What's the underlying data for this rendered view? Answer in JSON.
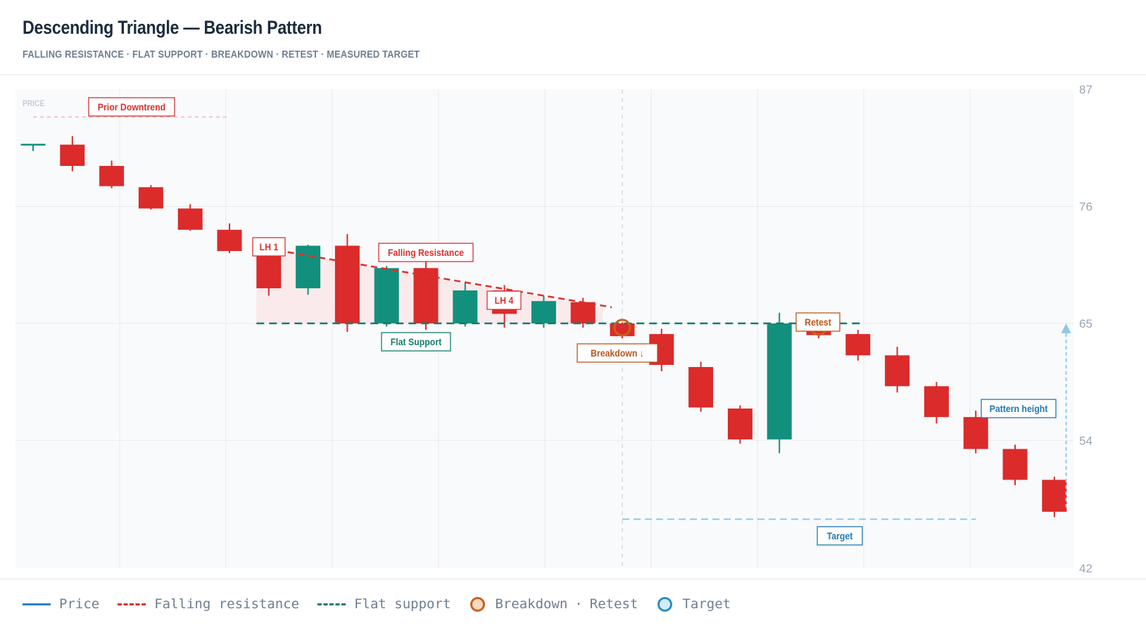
{
  "title": "Descending Triangle — Bearish Pattern",
  "subtitle": "FALLING RESISTANCE · FLAT SUPPORT · BREAKDOWN · RETEST · MEASURED TARGET",
  "legend": {
    "price": "Price",
    "resistance": "Falling resistance",
    "support": "Flat support",
    "breakdown": "Breakdown",
    "sep": "·",
    "retest": "Retest",
    "target": "Target"
  },
  "colors": {
    "bear": "#db2b2b",
    "bull": "#12907d",
    "resistance": "#d9312e",
    "support": "#147d6c",
    "breakdown": "#c8621e",
    "target": "#2d8fc0"
  },
  "chart_data": {
    "type": "candlestick",
    "ylabel": "PRICE",
    "ylim": [
      42,
      87
    ],
    "yticks": [
      87,
      76,
      65,
      54,
      42
    ],
    "grid": true,
    "candles": [
      {
        "o": 81.8,
        "h": 81.8,
        "l": 81.2,
        "c": 81.8
      },
      {
        "o": 81.8,
        "h": 82.6,
        "l": 79.3,
        "c": 79.8
      },
      {
        "o": 79.8,
        "h": 80.3,
        "l": 77.7,
        "c": 77.9
      },
      {
        "o": 77.8,
        "h": 78.0,
        "l": 75.7,
        "c": 75.8
      },
      {
        "o": 75.8,
        "h": 76.2,
        "l": 73.7,
        "c": 73.8
      },
      {
        "o": 73.8,
        "h": 74.4,
        "l": 71.6,
        "c": 71.8
      },
      {
        "o": 71.8,
        "h": 71.8,
        "l": 67.6,
        "c": 68.3
      },
      {
        "o": 68.3,
        "h": 72.4,
        "l": 67.7,
        "c": 72.3
      },
      {
        "o": 72.3,
        "h": 73.4,
        "l": 64.2,
        "c": 65.0
      },
      {
        "o": 65.0,
        "h": 70.4,
        "l": 64.7,
        "c": 70.2
      },
      {
        "o": 70.2,
        "h": 71.2,
        "l": 64.4,
        "c": 65.0
      },
      {
        "o": 65.0,
        "h": 68.8,
        "l": 64.7,
        "c": 68.1
      },
      {
        "o": 68.1,
        "h": 68.6,
        "l": 64.6,
        "c": 65.9
      },
      {
        "o": 65.0,
        "h": 67.6,
        "l": 64.6,
        "c": 67.1
      },
      {
        "o": 67.0,
        "h": 67.4,
        "l": 64.6,
        "c": 65.0
      },
      {
        "o": 65.0,
        "h": 65.1,
        "l": 63.6,
        "c": 63.8
      },
      {
        "o": 64.0,
        "h": 64.5,
        "l": 60.5,
        "c": 61.1
      },
      {
        "o": 60.9,
        "h": 61.4,
        "l": 56.7,
        "c": 57.1
      },
      {
        "o": 57.0,
        "h": 57.3,
        "l": 53.7,
        "c": 54.1
      },
      {
        "o": 54.1,
        "h": 66.0,
        "l": 52.8,
        "c": 65.0
      },
      {
        "o": 65.0,
        "h": 65.2,
        "l": 63.6,
        "c": 63.9
      },
      {
        "o": 64.0,
        "h": 64.4,
        "l": 61.5,
        "c": 62.0
      },
      {
        "o": 62.0,
        "h": 62.8,
        "l": 58.5,
        "c": 59.1
      },
      {
        "o": 59.1,
        "h": 59.5,
        "l": 55.6,
        "c": 56.2
      },
      {
        "o": 56.2,
        "h": 56.8,
        "l": 52.8,
        "c": 53.2
      },
      {
        "o": 53.2,
        "h": 53.6,
        "l": 49.8,
        "c": 50.3
      },
      {
        "o": 50.3,
        "h": 50.6,
        "l": 46.8,
        "c": 47.3
      }
    ],
    "prior_downtrend_level": 84.4,
    "resistance": {
      "from_index": 6,
      "to_index": 14.5,
      "from": 72.2,
      "to": 66.5
    },
    "support": {
      "from_index": 6,
      "to_index": 21,
      "value": 65.0
    },
    "target": {
      "from_index": 15,
      "to_index": 24,
      "value": 46.6
    },
    "pattern_height": {
      "x_index": 26.3,
      "from": 47.5,
      "to": 65.0
    },
    "breakdown_index": 15,
    "retest_index": 20,
    "annotations": {
      "prior_downtrend": "Prior Downtrend",
      "lh1": "LH 1",
      "falling_resistance": "Falling Resistance",
      "lh4": "LH 4",
      "flat_support": "Flat Support",
      "breakdown": "Breakdown ↓",
      "retest": "Retest",
      "target": "Target",
      "pattern_height": "Pattern height"
    }
  }
}
